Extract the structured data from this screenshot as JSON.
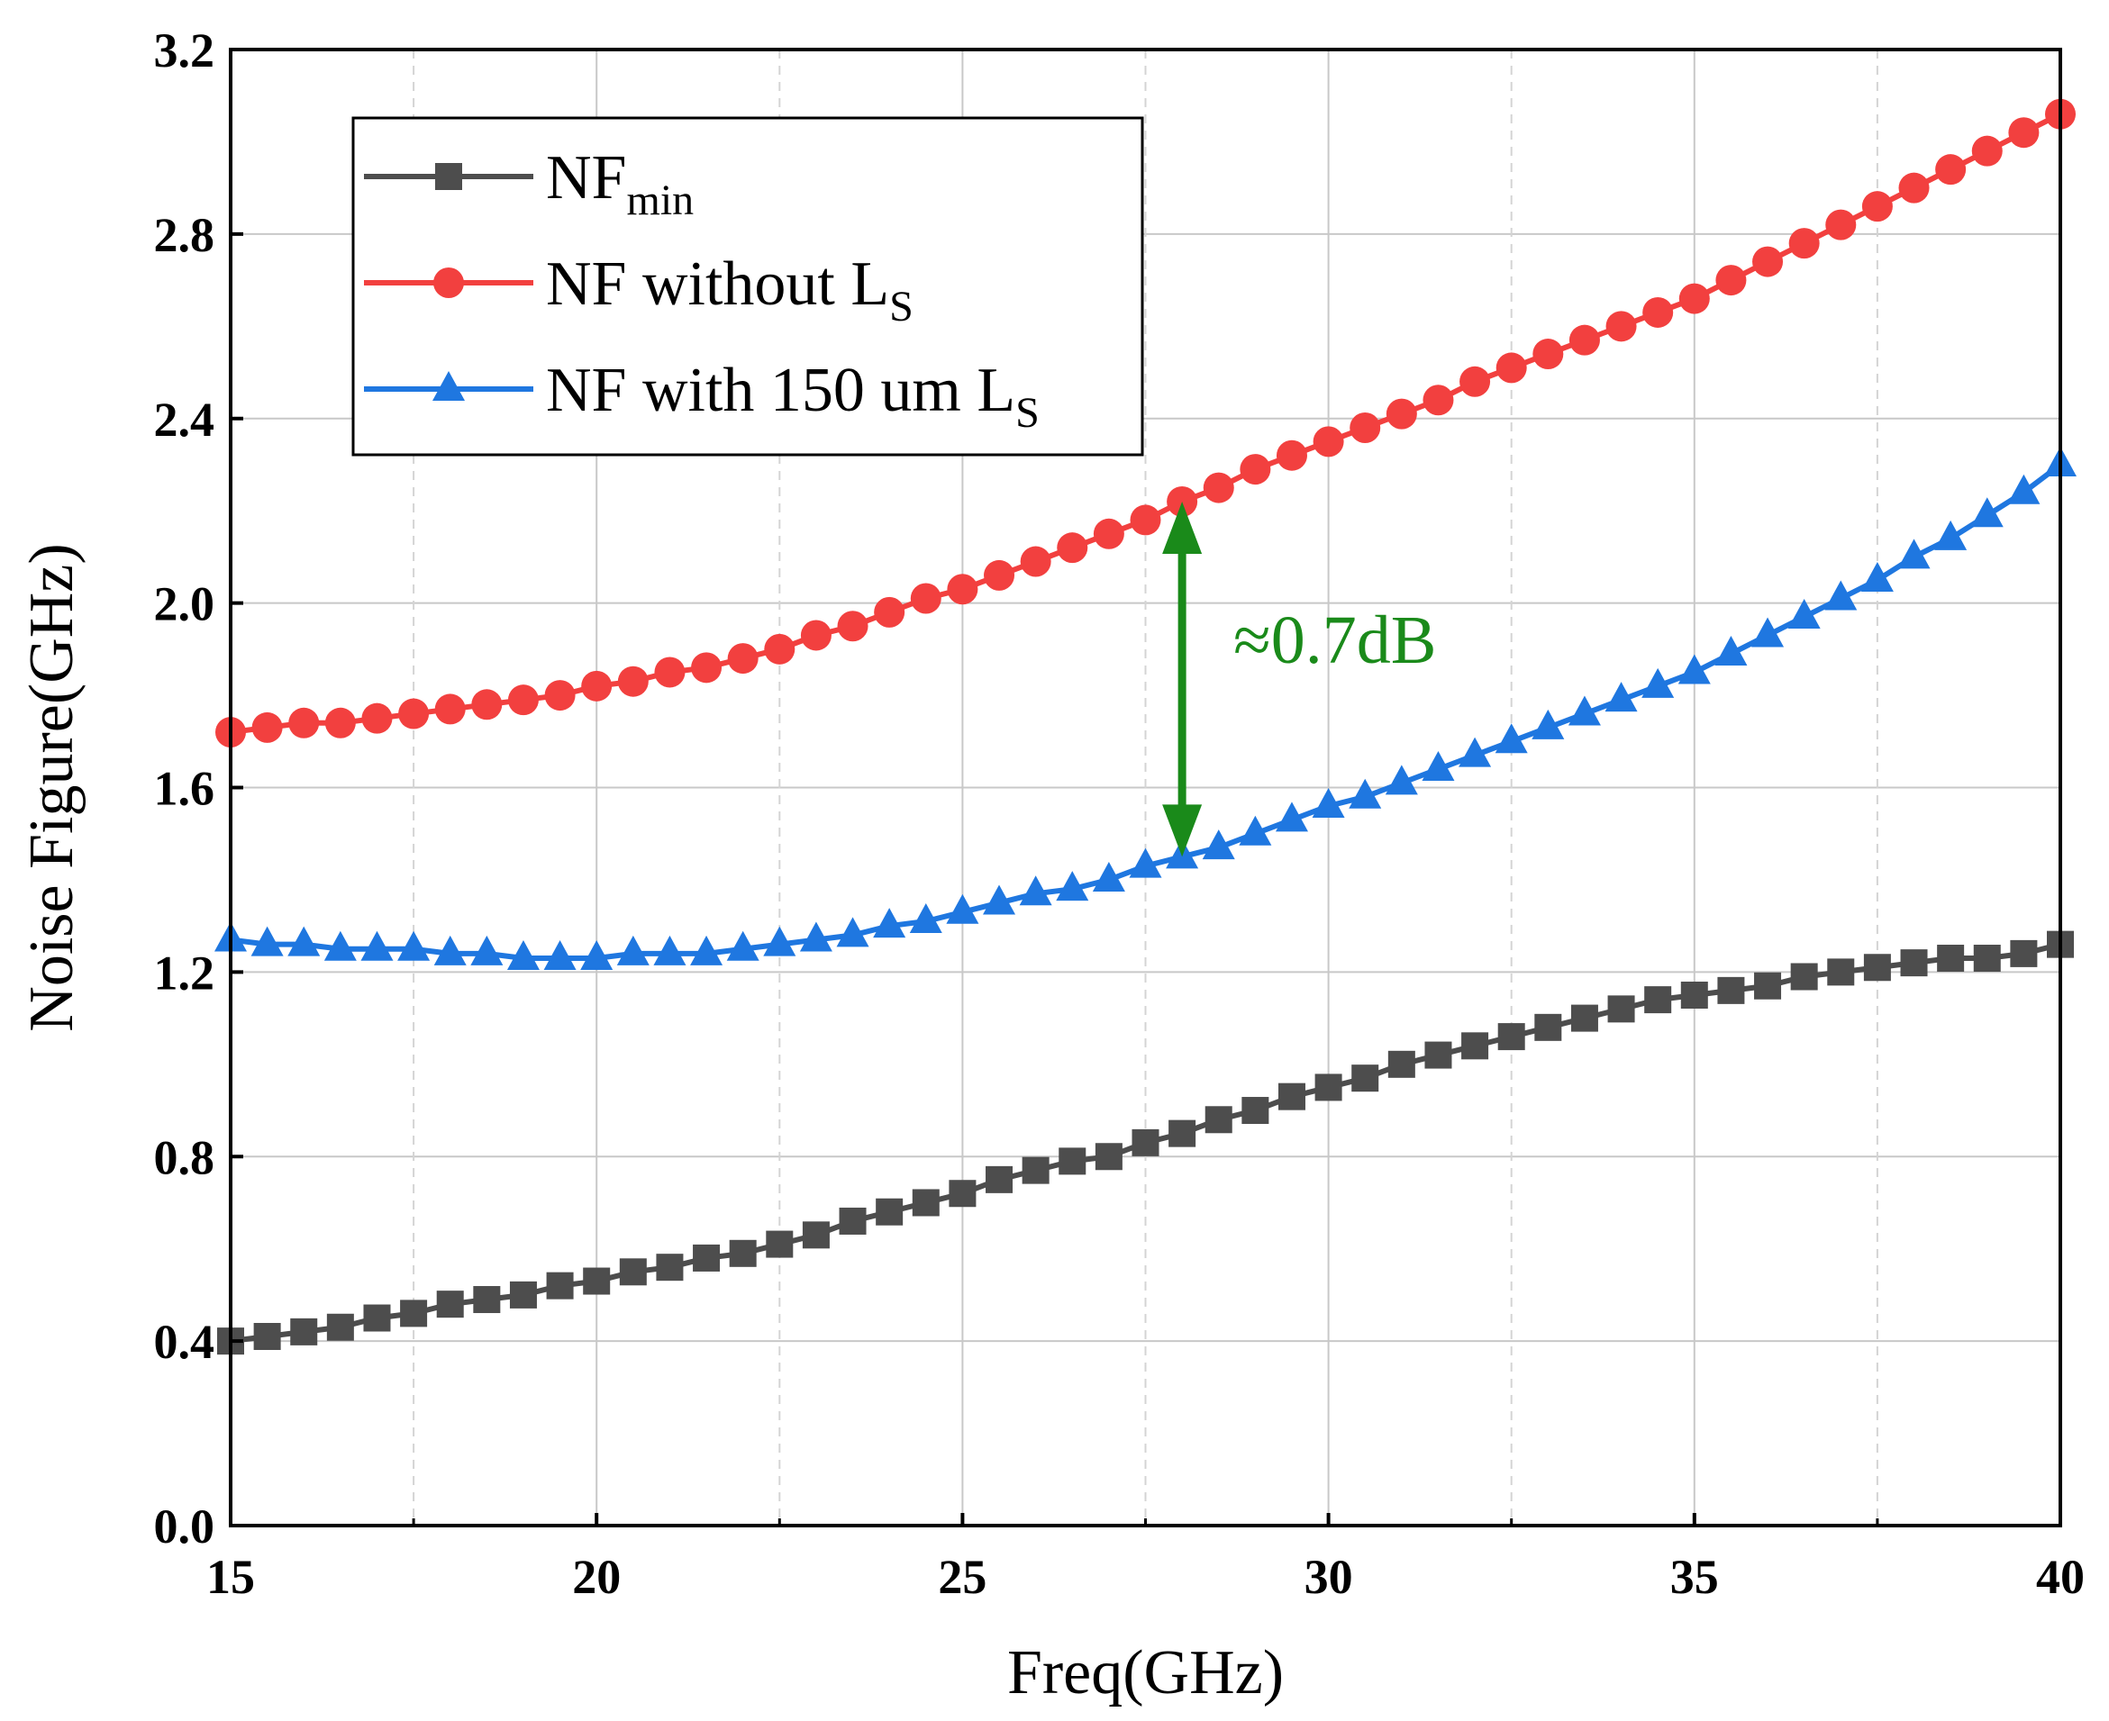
{
  "chart_data": {
    "type": "line",
    "title": "",
    "xlabel": "Freq(GHz)",
    "ylabel": "Noise Figure(GHz)",
    "xlim": [
      15,
      40
    ],
    "ylim": [
      0,
      3.2
    ],
    "xticks": [
      15,
      20,
      25,
      30,
      35,
      40
    ],
    "xtick_labels": [
      "15",
      "20",
      "25",
      "30",
      "35",
      "40"
    ],
    "yticks": [
      0,
      0.4,
      0.8,
      1.2,
      1.6,
      2.0,
      2.4,
      2.8,
      3.2
    ],
    "ytick_labels": [
      "0.0",
      "0.4",
      "0.8",
      "1.2",
      "1.6",
      "2.0",
      "2.4",
      "2.8",
      "3.2"
    ],
    "grid": true,
    "legend_position": "top-left",
    "x": [
      15,
      15.5,
      16,
      16.5,
      17,
      17.5,
      18,
      18.5,
      19,
      19.5,
      20,
      20.5,
      21,
      21.5,
      22,
      22.5,
      23,
      23.5,
      24,
      24.5,
      25,
      25.5,
      26,
      26.5,
      27,
      27.5,
      28,
      28.5,
      29,
      29.5,
      30,
      30.5,
      31,
      31.5,
      32,
      32.5,
      33,
      33.5,
      34,
      34.5,
      35,
      35.5,
      36,
      36.5,
      37,
      37.5,
      38,
      38.5,
      39,
      39.5,
      40
    ],
    "series": [
      {
        "name": "NFmin",
        "legend_main": "NF",
        "legend_sub": "min",
        "color": "#4d4d4d",
        "marker": "square",
        "values": [
          0.4,
          0.41,
          0.42,
          0.43,
          0.45,
          0.46,
          0.48,
          0.49,
          0.5,
          0.52,
          0.53,
          0.55,
          0.56,
          0.58,
          0.59,
          0.61,
          0.63,
          0.66,
          0.68,
          0.7,
          0.72,
          0.75,
          0.77,
          0.79,
          0.8,
          0.83,
          0.85,
          0.88,
          0.9,
          0.93,
          0.95,
          0.97,
          1.0,
          1.02,
          1.04,
          1.06,
          1.08,
          1.1,
          1.12,
          1.14,
          1.15,
          1.16,
          1.17,
          1.19,
          1.2,
          1.21,
          1.22,
          1.23,
          1.23,
          1.24,
          1.26
        ]
      },
      {
        "name": "NF without LS",
        "legend_main": "NF without L",
        "legend_sub": "S",
        "color": "#f2403f",
        "marker": "circle",
        "values": [
          1.72,
          1.73,
          1.74,
          1.74,
          1.75,
          1.76,
          1.77,
          1.78,
          1.79,
          1.8,
          1.82,
          1.83,
          1.85,
          1.86,
          1.88,
          1.9,
          1.93,
          1.95,
          1.98,
          2.01,
          2.03,
          2.06,
          2.09,
          2.12,
          2.15,
          2.18,
          2.22,
          2.25,
          2.29,
          2.32,
          2.35,
          2.38,
          2.41,
          2.44,
          2.48,
          2.51,
          2.54,
          2.57,
          2.6,
          2.63,
          2.66,
          2.7,
          2.74,
          2.78,
          2.82,
          2.86,
          2.9,
          2.94,
          2.98,
          3.02,
          3.06
        ]
      },
      {
        "name": "NF with 150 um LS",
        "legend_main": "NF with 150 um L",
        "legend_sub": "S",
        "color": "#1f77e0",
        "marker": "triangle",
        "values": [
          1.27,
          1.26,
          1.26,
          1.25,
          1.25,
          1.25,
          1.24,
          1.24,
          1.23,
          1.23,
          1.23,
          1.24,
          1.24,
          1.24,
          1.25,
          1.26,
          1.27,
          1.28,
          1.3,
          1.31,
          1.33,
          1.35,
          1.37,
          1.38,
          1.4,
          1.43,
          1.45,
          1.47,
          1.5,
          1.53,
          1.56,
          1.58,
          1.61,
          1.64,
          1.67,
          1.7,
          1.73,
          1.76,
          1.79,
          1.82,
          1.85,
          1.89,
          1.93,
          1.97,
          2.01,
          2.05,
          2.1,
          2.14,
          2.19,
          2.24,
          2.3
        ]
      }
    ],
    "annotations": [
      {
        "text": "≈0.7dB",
        "color": "#1a8a1a",
        "arrow_x": 28,
        "arrow_y_from": 1.45,
        "arrow_y_to": 2.22,
        "text_x": 28.7,
        "text_y": 1.87
      }
    ]
  }
}
